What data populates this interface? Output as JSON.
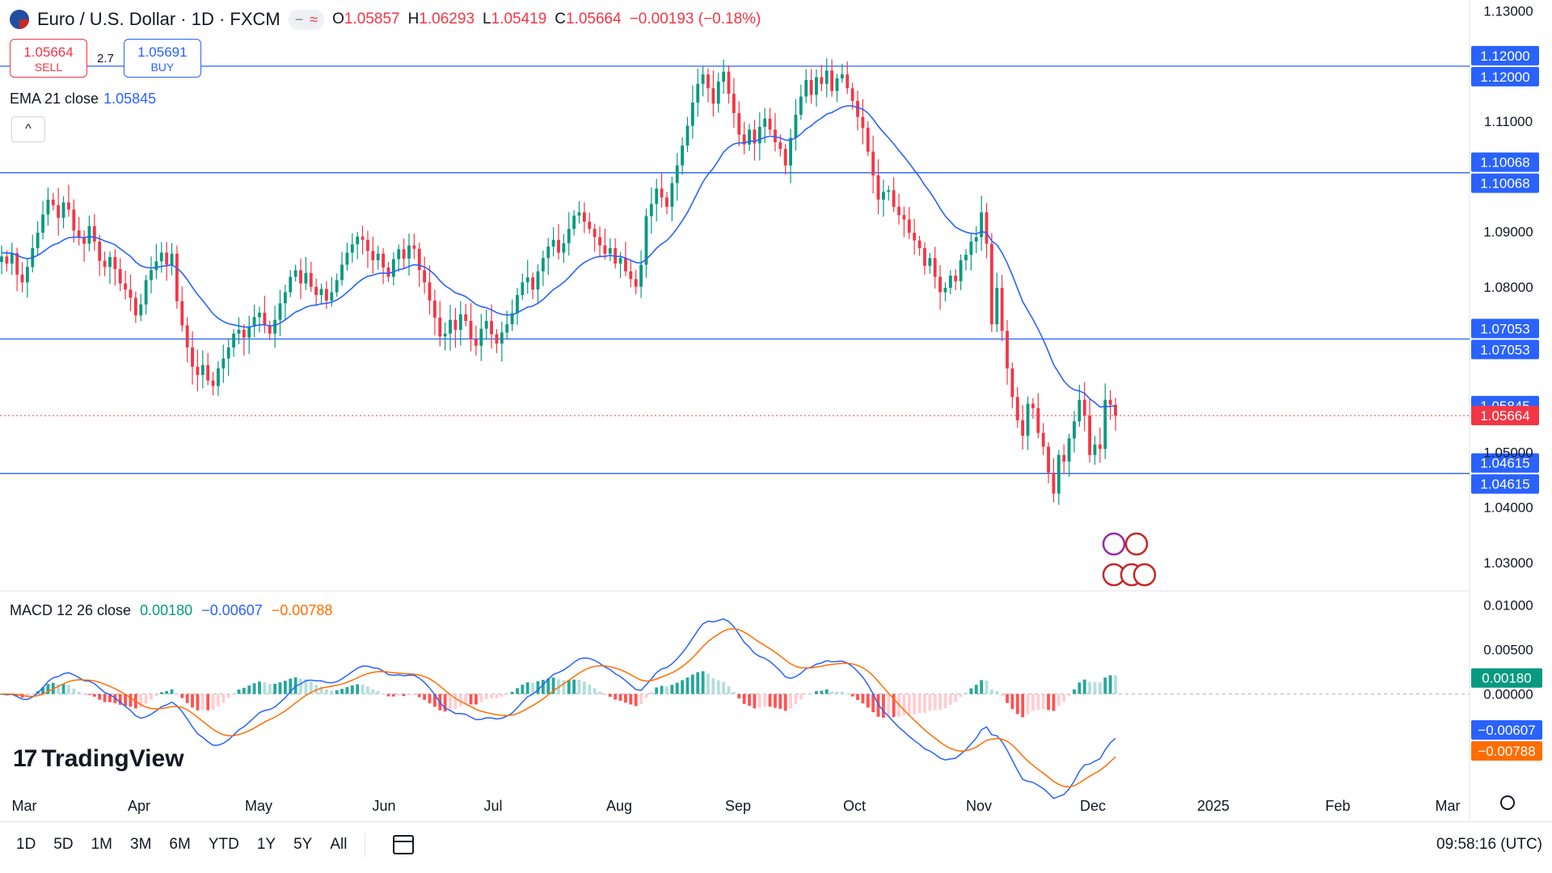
{
  "header": {
    "title": "Euro / U.S. Dollar · 1D · FXCM",
    "flag_icon": "eur-usd-flag-icon",
    "pill_minus": "−",
    "pill_wave": "≈",
    "ohlc": {
      "o_label": "O",
      "o": "1.05857",
      "h_label": "H",
      "h": "1.06293",
      "l_label": "L",
      "l": "1.05419",
      "c_label": "C",
      "c": "1.05664",
      "change": "−0.00193 (−0.18%)"
    }
  },
  "trade": {
    "sell_price": "1.05664",
    "sell_label": "SELL",
    "spread": "2.7",
    "buy_price": "1.05691",
    "buy_label": "BUY"
  },
  "ema_legend": {
    "label": "EMA 21 close",
    "value": "1.05845"
  },
  "collapse_label": "^",
  "macd_legend": {
    "label": "MACD 12 26 close",
    "hist": "0.00180",
    "macd": "−0.00607",
    "signal": "−0.00788"
  },
  "logo": {
    "mark": "17",
    "text": "TradingView"
  },
  "bottom": {
    "ranges": [
      "1D",
      "5D",
      "1M",
      "3M",
      "6M",
      "YTD",
      "1Y",
      "5Y",
      "All"
    ],
    "clock": "09:58:16 (UTC)"
  },
  "colors": {
    "up": "#089981",
    "down": "#f23645",
    "ema": "#2962ff",
    "macd": "#2962ff",
    "signal": "#ff6d00",
    "hline": "#2962ff"
  },
  "chart_data": [
    {
      "type": "candlestick",
      "ylim": [
        1.025,
        1.132
      ],
      "y_ticks": [
        1.03,
        1.04,
        1.05,
        1.08,
        1.09,
        1.11,
        1.13
      ],
      "y_tick_labels": [
        "1.03000",
        "1.04000",
        "1.05000",
        "1.08000",
        "1.09000",
        "1.11000",
        "1.13000"
      ],
      "x_labels": [
        "Mar",
        "Apr",
        "May",
        "Jun",
        "Jul",
        "Aug",
        "Sep",
        "Oct",
        "Nov",
        "Dec",
        "2025",
        "Feb",
        "Mar"
      ],
      "horizontal_lines": [
        {
          "value": 1.12,
          "label": "1.12000"
        },
        {
          "value": 1.10068,
          "label": "1.10068"
        },
        {
          "value": 1.07053,
          "label": "1.07053"
        },
        {
          "value": 1.04615,
          "label": "1.04615"
        }
      ],
      "last_price": {
        "value": 1.05664,
        "label": "1.05664"
      },
      "ema_value": {
        "value": 1.05845,
        "label": "1.05845"
      },
      "closes": [
        1.0855,
        1.0842,
        1.0861,
        1.0822,
        1.0808,
        1.0836,
        1.087,
        1.0898,
        1.0931,
        1.0958,
        1.0948,
        1.0925,
        1.0953,
        1.094,
        1.0902,
        1.089,
        1.0878,
        1.091,
        1.0882,
        1.0847,
        1.0836,
        1.0854,
        1.0832,
        1.0806,
        1.0795,
        1.078,
        1.0748,
        1.0768,
        1.0812,
        1.083,
        1.0846,
        1.0862,
        1.084,
        1.086,
        1.0774,
        1.073,
        1.069,
        1.0655,
        1.064,
        1.0658,
        1.063,
        1.062,
        1.0652,
        1.067,
        1.069,
        1.0715,
        1.0722,
        1.0708,
        1.0728,
        1.0745,
        1.0753,
        1.073,
        1.0715,
        1.074,
        1.077,
        1.079,
        1.0818,
        1.083,
        1.0806,
        1.0825,
        1.08,
        1.0785,
        1.0796,
        1.0775,
        1.079,
        1.0812,
        1.084,
        1.0862,
        1.0877,
        1.0891,
        1.0885,
        1.0865,
        1.0848,
        1.086,
        1.0835,
        1.0818,
        1.085,
        1.0868,
        1.0851,
        1.0875,
        1.0869,
        1.083,
        1.0808,
        1.0775,
        1.0744,
        1.071,
        1.0715,
        1.074,
        1.0722,
        1.075,
        1.0738,
        1.0705,
        1.0693,
        1.0724,
        1.0738,
        1.0714,
        1.0697,
        1.0717,
        1.0732,
        1.0752,
        1.0785,
        1.0808,
        1.0817,
        1.0795,
        1.0828,
        1.0852,
        1.0873,
        1.0885,
        1.0862,
        1.0879,
        1.0905,
        1.0929,
        1.0935,
        1.0918,
        1.0905,
        1.089,
        1.0875,
        1.086,
        1.087,
        1.0842,
        1.0852,
        1.0828,
        1.0814,
        1.08,
        1.084,
        1.0928,
        1.095,
        1.0978,
        1.0962,
        1.0945,
        1.0988,
        1.102,
        1.1056,
        1.1092,
        1.1134,
        1.1168,
        1.1185,
        1.116,
        1.1132,
        1.1172,
        1.119,
        1.115,
        1.1115,
        1.1076,
        1.1058,
        1.1085,
        1.106,
        1.109,
        1.1105,
        1.1085,
        1.1062,
        1.105,
        1.102,
        1.107,
        1.1112,
        1.1145,
        1.1175,
        1.1148,
        1.118,
        1.1168,
        1.1192,
        1.1155,
        1.1178,
        1.1185,
        1.116,
        1.1137,
        1.1108,
        1.1088,
        1.1045,
        1.1002,
        1.0958,
        1.0972,
        1.0975,
        1.0945,
        1.093,
        1.0922,
        1.0898,
        1.0884,
        1.087,
        1.0838,
        1.0852,
        1.0818,
        1.079,
        1.0798,
        1.082,
        1.081,
        1.0848,
        1.0858,
        1.0882,
        1.089,
        1.0935,
        1.0878,
        1.0732,
        1.0798,
        1.072,
        1.0652,
        1.06,
        1.0558,
        1.053,
        1.0588,
        1.058,
        1.0535,
        1.051,
        1.0463,
        1.0425,
        1.0495,
        1.0483,
        1.0525,
        1.0556,
        1.0595,
        1.0566,
        1.0495,
        1.0514,
        1.0506,
        1.0595,
        1.0586,
        1.05664
      ],
      "ema21": [
        1.0862,
        1.0861,
        1.0861,
        1.0857,
        1.0853,
        1.0851,
        1.0853,
        1.0857,
        1.0863,
        1.087,
        1.0876,
        1.0879,
        1.0885,
        1.0889,
        1.089,
        1.089,
        1.0889,
        1.0891,
        1.089,
        1.0887,
        1.0883,
        1.088,
        1.0876,
        1.0869,
        1.0862,
        1.0855,
        1.0845,
        1.0838,
        1.0835,
        1.0834,
        1.0835,
        1.0837,
        1.0838,
        1.084,
        1.0834,
        1.0825,
        1.0813,
        1.0799,
        1.0786,
        1.0775,
        1.0763,
        1.0751,
        1.0743,
        1.0737,
        1.0733,
        1.0731,
        1.0729,
        1.0727,
        1.0727,
        1.0729,
        1.0731,
        1.0731,
        1.0729,
        1.073,
        1.0734,
        1.074,
        1.0747,
        1.0754,
        1.0758,
        1.0763,
        1.0766,
        1.0767,
        1.0769,
        1.077,
        1.0772,
        1.0776,
        1.0782,
        1.079,
        1.0798,
        1.0807,
        1.0814,
        1.0819,
        1.0821,
        1.0824,
        1.0825,
        1.0824,
        1.0827,
        1.0831,
        1.0833,
        1.0837,
        1.084,
        1.0839,
        1.0836,
        1.083,
        1.0822,
        1.0811,
        1.0802,
        1.0796,
        1.0789,
        1.0786,
        1.0782,
        1.0775,
        1.0768,
        1.0764,
        1.0762,
        1.0758,
        1.0753,
        1.075,
        1.0749,
        1.0749,
        1.0753,
        1.0758,
        1.0763,
        1.0765,
        1.077,
        1.0777,
        1.0786,
        1.0795,
        1.0801,
        1.0808,
        1.0817,
        1.0827,
        1.0837,
        1.0844,
        1.0849,
        1.0853,
        1.0855,
        1.0855,
        1.0857,
        1.0855,
        1.0855,
        1.0852,
        1.0848,
        1.0844,
        1.0843,
        1.085,
        1.0859,
        1.087,
        1.0878,
        1.0884,
        1.0894,
        1.0906,
        1.092,
        1.0935,
        1.0953,
        1.0972,
        1.099,
        1.1004,
        1.1015,
        1.1029,
        1.1044,
        1.1053,
        1.1059,
        1.1061,
        1.1061,
        1.1064,
        1.1064,
        1.1067,
        1.1071,
        1.1073,
        1.1072,
        1.107,
        1.1066,
        1.1066,
        1.107,
        1.1077,
        1.1086,
        1.1092,
        1.11,
        1.1106,
        1.1113,
        1.1116,
        1.1121,
        1.1126,
        1.1128,
        1.1128,
        1.1125,
        1.1122,
        1.1115,
        1.1104,
        1.1091,
        1.108,
        1.107,
        1.1059,
        1.1047,
        1.1036,
        1.1024,
        1.1011,
        1.0999,
        1.0984,
        1.0972,
        1.0958,
        1.0942,
        1.0928,
        1.0918,
        1.0908,
        1.0903,
        1.0899,
        1.0897,
        1.0896,
        1.09,
        1.0898,
        1.0883,
        1.0876,
        1.0862,
        1.0843,
        1.0821,
        1.0797,
        1.0773,
        1.0757,
        1.0741,
        1.0723,
        1.0704,
        1.0682,
        1.0659,
        1.0644,
        1.0629,
        1.0619,
        1.0613,
        1.0611,
        1.0607,
        1.0597,
        1.059,
        1.0582,
        1.0583,
        1.0583,
        1.05845
      ]
    },
    {
      "type": "macd",
      "ylim": [
        -0.0115,
        0.0115
      ],
      "y_ticks": [
        0.01,
        0.005,
        0.0
      ],
      "y_tick_labels": [
        "0.01000",
        "0.00500",
        "0.00000"
      ],
      "macd_value": {
        "value": -0.00607,
        "label": "−0.00607"
      },
      "signal_value": {
        "value": -0.00788,
        "label": "−0.00788"
      },
      "hist_value": {
        "value": 0.0018,
        "label": "0.00180"
      }
    }
  ]
}
